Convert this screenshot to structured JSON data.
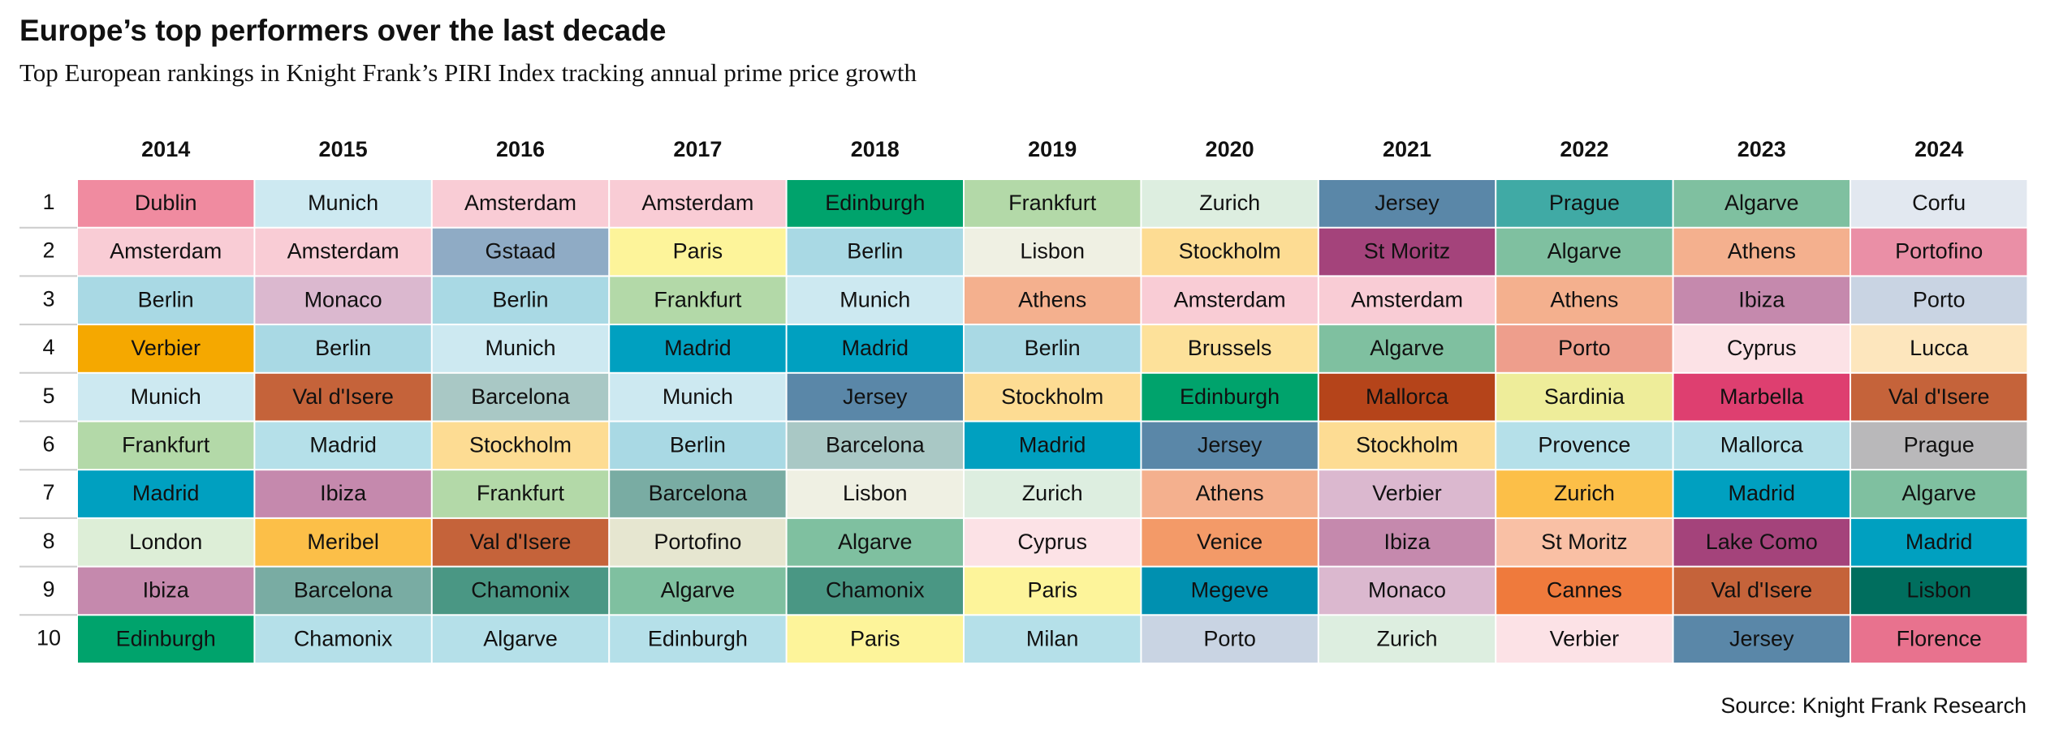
{
  "header": {
    "title": "Europe’s top performers over the last decade",
    "subtitle": "Top European rankings in Knight Frank’s PIRI Index tracking annual prime price growth"
  },
  "table": {
    "columns": [
      2014,
      2015,
      2016,
      2017,
      2018,
      2019,
      2020,
      2021,
      2022,
      2023,
      2024
    ],
    "ranks": [
      1,
      2,
      3,
      4,
      5,
      6,
      7,
      8,
      9,
      10
    ],
    "rows": [
      [
        "Dublin",
        "Munich",
        "Amsterdam",
        "Amsterdam",
        "Edinburgh",
        "Frankfurt",
        "Zurich",
        "Jersey",
        "Prague",
        "Algarve",
        "Corfu"
      ],
      [
        "Amsterdam",
        "Amsterdam",
        "Gstaad",
        "Paris",
        "Berlin",
        "Lisbon",
        "Stockholm",
        "St Moritz",
        "Algarve",
        "Athens",
        "Portofino"
      ],
      [
        "Berlin",
        "Monaco",
        "Berlin",
        "Frankfurt",
        "Munich",
        "Athens",
        "Amsterdam",
        "Amsterdam",
        "Athens",
        "Ibiza",
        "Porto"
      ],
      [
        "Verbier",
        "Berlin",
        "Munich",
        "Madrid",
        "Madrid",
        "Berlin",
        "Brussels",
        "Algarve",
        "Porto",
        "Cyprus",
        "Lucca"
      ],
      [
        "Munich",
        "Val d'Isere",
        "Barcelona",
        "Munich",
        "Jersey",
        "Stockholm",
        "Edinburgh",
        "Mallorca",
        "Sardinia",
        "Marbella",
        "Val d'Isere"
      ],
      [
        "Frankfurt",
        "Madrid",
        "Stockholm",
        "Berlin",
        "Barcelona",
        "Madrid",
        "Jersey",
        "Stockholm",
        "Provence",
        "Mallorca",
        "Prague"
      ],
      [
        "Madrid",
        "Ibiza",
        "Frankfurt",
        "Barcelona",
        "Lisbon",
        "Zurich",
        "Athens",
        "Verbier",
        "Zurich",
        "Madrid",
        "Algarve"
      ],
      [
        "London",
        "Meribel",
        "Val d'Isere",
        "Portofino",
        "Algarve",
        "Cyprus",
        "Venice",
        "Ibiza",
        "St Moritz",
        "Lake Como",
        "Madrid"
      ],
      [
        "Ibiza",
        "Barcelona",
        "Chamonix",
        "Algarve",
        "Chamonix",
        "Paris",
        "Megeve",
        "Monaco",
        "Cannes",
        "Val d'Isere",
        "Lisbon"
      ],
      [
        "Edinburgh",
        "Chamonix",
        "Algarve",
        "Edinburgh",
        "Paris",
        "Milan",
        "Porto",
        "Zurich",
        "Verbier",
        "Jersey",
        "Florence"
      ]
    ],
    "colors": [
      [
        "#f08ba0",
        "#cde9f1",
        "#f9ccd5",
        "#f9ccd5",
        "#00a36c",
        "#b3d9a8",
        "#ddeee0",
        "#5a87a8",
        "#40aaa5",
        "#7fc0a0",
        "#e2e8f0"
      ],
      [
        "#f9ccd5",
        "#f9ccd5",
        "#8fabc5",
        "#fdf49a",
        "#a9d9e4",
        "#eff0e3",
        "#fddc93",
        "#a4437b",
        "#7fc0a0",
        "#f4b08e",
        "#ea8fa6"
      ],
      [
        "#a9d9e4",
        "#dbb8cf",
        "#a9d9e4",
        "#b3d9a8",
        "#cde9f1",
        "#f4b08e",
        "#f9ccd5",
        "#f9ccd5",
        "#f4b08e",
        "#c589ad",
        "#c9d4e3"
      ],
      [
        "#f5a800",
        "#a9d9e4",
        "#cde9f1",
        "#00a0c0",
        "#00a0c0",
        "#a9d9e4",
        "#fde19a",
        "#7fc0a0",
        "#ee9e8c",
        "#fce2e6",
        "#fde6bd"
      ],
      [
        "#cde9f1",
        "#c5633a",
        "#a9c8c5",
        "#cde9f1",
        "#5a87a8",
        "#fddc93",
        "#00a36c",
        "#b5441a",
        "#eeed9a",
        "#de3f70",
        "#c5633a"
      ],
      [
        "#b3d9a8",
        "#b5e0e9",
        "#fddc93",
        "#a9d9e4",
        "#a9c8c5",
        "#00a0c0",
        "#5a87a8",
        "#fddc93",
        "#b5e0e9",
        "#b5e0e9",
        "#b9b8ba"
      ],
      [
        "#00a0c0",
        "#c589ad",
        "#b3d9a8",
        "#79aca3",
        "#eff0e3",
        "#ddeee0",
        "#f4b08e",
        "#dbb8cf",
        "#fcbf48",
        "#00a0c0",
        "#7fc0a0"
      ],
      [
        "#ddeed7",
        "#fcbf48",
        "#c5633a",
        "#e6e6d0",
        "#7fc0a0",
        "#fce2e6",
        "#f39a68",
        "#c589ad",
        "#f9c0a5",
        "#a4437b",
        "#00a0c0"
      ],
      [
        "#c589ad",
        "#79aca3",
        "#4a9784",
        "#7fc0a0",
        "#4a9784",
        "#fdf49a",
        "#0090b0",
        "#dbb8cf",
        "#ef7a3c",
        "#c5633a",
        "#006e5e"
      ],
      [
        "#00a36c",
        "#b5e0e9",
        "#b5e0e9",
        "#b5e0e9",
        "#fdf49a",
        "#b5e0e9",
        "#c9d4e3",
        "#ddeee0",
        "#fce2e6",
        "#5a87a8",
        "#e8728e"
      ]
    ]
  },
  "footer": {
    "source": "Source: Knight Frank Research"
  }
}
